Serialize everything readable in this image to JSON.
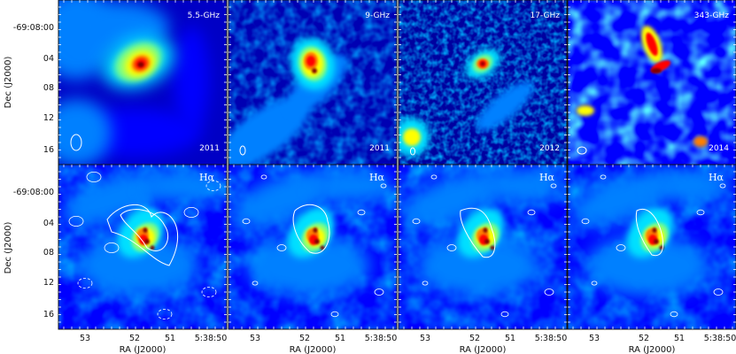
{
  "figure": {
    "ylabel": "Dec (J2000)",
    "xlabel": "RA (J2000)",
    "dec_ticks": [
      "-69:08:00",
      "04",
      "08",
      "12",
      "16"
    ],
    "ra_ticks": [
      "53",
      "52",
      "51",
      "5:38:50"
    ],
    "top_row": [
      {
        "freq": "5.5-GHz",
        "year": "2011"
      },
      {
        "freq": "9-GHz",
        "year": "2011"
      },
      {
        "freq": "17-GHz",
        "year": "2012"
      },
      {
        "freq": "343-GHz",
        "year": "2014"
      }
    ],
    "bottom_label": "Hα",
    "colormap": [
      "#00007f",
      "#0000ff",
      "#0080ff",
      "#00e0ff",
      "#80ff80",
      "#ffff00",
      "#ff8000",
      "#ff0000",
      "#800000"
    ]
  }
}
